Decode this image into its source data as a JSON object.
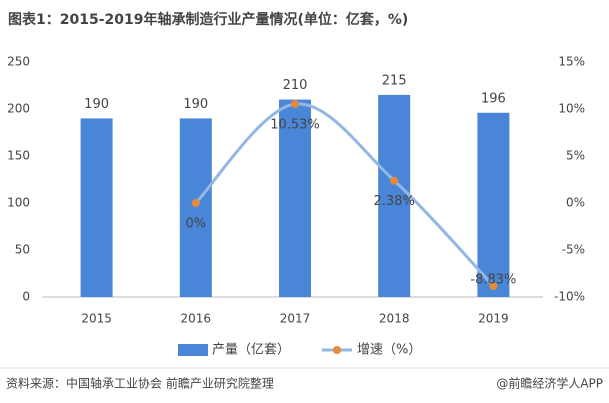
{
  "chart_data": {
    "type": "bar_line",
    "title": "图表1：2015-2019年轴承制造行业产量情况(单位：亿套，%)",
    "categories": [
      "2015",
      "2016",
      "2017",
      "2018",
      "2019"
    ],
    "series": [
      {
        "name": "产量（亿套）",
        "type": "bar",
        "color": "#4a86d8",
        "values": [
          190,
          190,
          210,
          215,
          196
        ]
      },
      {
        "name": "增速（%）",
        "type": "line",
        "axis": "y2",
        "color": "#93b7e4",
        "marker_color": "#e8893b",
        "values": [
          null,
          0,
          10.53,
          2.38,
          -8.83
        ],
        "value_labels": [
          null,
          "0%",
          "10.53%",
          "2.38%",
          "-8.83%"
        ]
      }
    ],
    "ylim": [
      0,
      250
    ],
    "yticks": [
      0,
      50,
      100,
      150,
      200,
      250
    ],
    "y2lim": [
      -10,
      15
    ],
    "y2ticks": [
      {
        "value": -10,
        "label": "-10%"
      },
      {
        "value": -5,
        "label": "-5%"
      },
      {
        "value": 0,
        "label": "0%"
      },
      {
        "value": 5,
        "label": "5%"
      },
      {
        "value": 10,
        "label": "10%"
      },
      {
        "value": 15,
        "label": "15%"
      }
    ],
    "legend": "bottom",
    "source": "资料来源：中国轴承工业协会 前瞻产业研究院整理",
    "credit": "@前瞻经济学人APP"
  }
}
